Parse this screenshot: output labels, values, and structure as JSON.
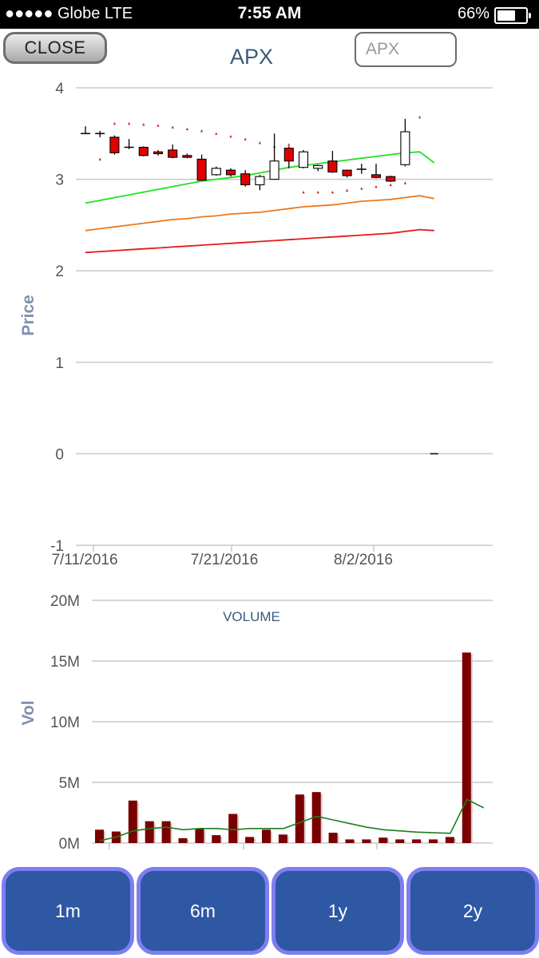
{
  "status_bar": {
    "carrier": "●●●●● Globe   LTE",
    "time": "7:55 AM",
    "battery_text": "66%",
    "battery_level": 0.66
  },
  "header": {
    "close_label": "CLOSE",
    "title": "APX",
    "symbol_placeholder": "APX"
  },
  "price_chart": {
    "ylabel": "Price",
    "y_ticks": [
      "4",
      "3",
      "2",
      "1",
      "0",
      "-1"
    ],
    "x_ticks": [
      "7/11/2016",
      "7/21/2016",
      "8/2/2016"
    ]
  },
  "volume_chart": {
    "ylabel": "Vol",
    "annotation": "VOLUME",
    "y_ticks": [
      "20M",
      "15M",
      "10M",
      "5M",
      "0M"
    ]
  },
  "periods": [
    "1m",
    "6m",
    "1y",
    "2y"
  ],
  "colors": {
    "down_candle": "#e00000",
    "up_candle": "#ffffff",
    "ma_short": "#22e022",
    "ma_mid": "#f07818",
    "ma_long": "#e81818",
    "volume_bar": "#7a0000",
    "volume_ma": "#1e7d1e",
    "period_button": "#2e57a4"
  },
  "chart_data": [
    {
      "type": "candlestick",
      "ylabel": "Price",
      "ylim": [
        -1,
        4
      ],
      "x": [
        "7/11/2016",
        "7/12/2016",
        "7/13/2016",
        "7/14/2016",
        "7/15/2016",
        "7/18/2016",
        "7/19/2016",
        "7/20/2016",
        "7/21/2016",
        "7/22/2016",
        "7/25/2016",
        "7/26/2016",
        "7/27/2016",
        "7/28/2016",
        "7/29/2016",
        "8/1/2016",
        "8/2/2016",
        "8/3/2016",
        "8/4/2016",
        "8/5/2016",
        "8/8/2016",
        "8/9/2016",
        "8/10/2016",
        "8/11/2016",
        "8/12/2016"
      ],
      "open": [
        3.5,
        3.5,
        3.46,
        3.35,
        3.35,
        3.3,
        3.32,
        3.26,
        3.22,
        3.05,
        3.1,
        3.06,
        2.94,
        3.0,
        3.34,
        3.13,
        3.12,
        3.2,
        3.1,
        3.11,
        3.05,
        3.03,
        3.16,
        null,
        null
      ],
      "close": [
        3.5,
        3.5,
        3.29,
        3.35,
        3.26,
        3.28,
        3.24,
        3.24,
        2.99,
        3.12,
        3.05,
        2.94,
        3.03,
        3.2,
        3.2,
        3.3,
        3.15,
        3.08,
        3.04,
        3.11,
        3.02,
        2.98,
        3.52,
        null,
        null
      ],
      "high": [
        3.58,
        3.53,
        3.48,
        3.44,
        3.36,
        3.32,
        3.38,
        3.28,
        3.27,
        3.14,
        3.12,
        3.1,
        3.05,
        3.5,
        3.36,
        3.32,
        3.16,
        3.31,
        3.1,
        3.17,
        3.17,
        3.04,
        3.66,
        null,
        null
      ],
      "low": [
        3.5,
        3.46,
        3.27,
        3.33,
        3.25,
        3.26,
        3.23,
        3.23,
        2.99,
        3.04,
        3.03,
        2.92,
        2.88,
        3.0,
        3.12,
        3.12,
        3.09,
        3.07,
        3.02,
        3.06,
        3.01,
        2.97,
        3.14,
        null,
        0.0
      ],
      "parabolic_sar": [
        null,
        3.22,
        3.61,
        3.61,
        3.6,
        3.59,
        3.57,
        3.55,
        3.53,
        3.5,
        3.47,
        3.44,
        3.4,
        3.36,
        3.38,
        2.86,
        2.86,
        2.86,
        2.88,
        2.9,
        2.92,
        2.94,
        2.96,
        3.68,
        null
      ],
      "series": [
        {
          "name": "ma_short",
          "values": [
            2.74,
            2.77,
            2.8,
            2.83,
            2.86,
            2.89,
            2.92,
            2.95,
            2.98,
            3.0,
            3.02,
            3.04,
            3.07,
            3.1,
            3.13,
            3.15,
            3.17,
            3.19,
            3.21,
            3.23,
            3.25,
            3.27,
            3.29,
            3.3,
            3.18
          ]
        },
        {
          "name": "ma_mid",
          "values": [
            2.44,
            2.46,
            2.48,
            2.5,
            2.52,
            2.54,
            2.56,
            2.57,
            2.59,
            2.6,
            2.62,
            2.63,
            2.64,
            2.66,
            2.68,
            2.7,
            2.71,
            2.72,
            2.74,
            2.76,
            2.77,
            2.78,
            2.8,
            2.82,
            2.79
          ]
        },
        {
          "name": "ma_long",
          "values": [
            2.2,
            2.21,
            2.22,
            2.23,
            2.24,
            2.25,
            2.26,
            2.27,
            2.28,
            2.29,
            2.3,
            2.31,
            2.32,
            2.33,
            2.34,
            2.35,
            2.36,
            2.37,
            2.38,
            2.39,
            2.4,
            2.41,
            2.43,
            2.45,
            2.44
          ]
        }
      ]
    },
    {
      "type": "bar",
      "title": "VOLUME",
      "ylabel": "Vol",
      "ylim": [
        0,
        20000000
      ],
      "values": [
        1100000,
        950000,
        3500000,
        1800000,
        1800000,
        400000,
        1200000,
        650000,
        2400000,
        500000,
        1100000,
        700000,
        4000000,
        4200000,
        850000,
        300000,
        300000,
        450000,
        300000,
        300000,
        300000,
        500000,
        15700000
      ],
      "series": [
        {
          "name": "volume_ma",
          "values": [
            200000,
            500000,
            1000000,
            1200000,
            1300000,
            1100000,
            1200000,
            1200000,
            1100000,
            1200000,
            1200000,
            1200000,
            1700000,
            2200000,
            1900000,
            1600000,
            1300000,
            1100000,
            1000000,
            900000,
            850000,
            800000,
            3600000,
            2900000
          ]
        }
      ]
    }
  ]
}
